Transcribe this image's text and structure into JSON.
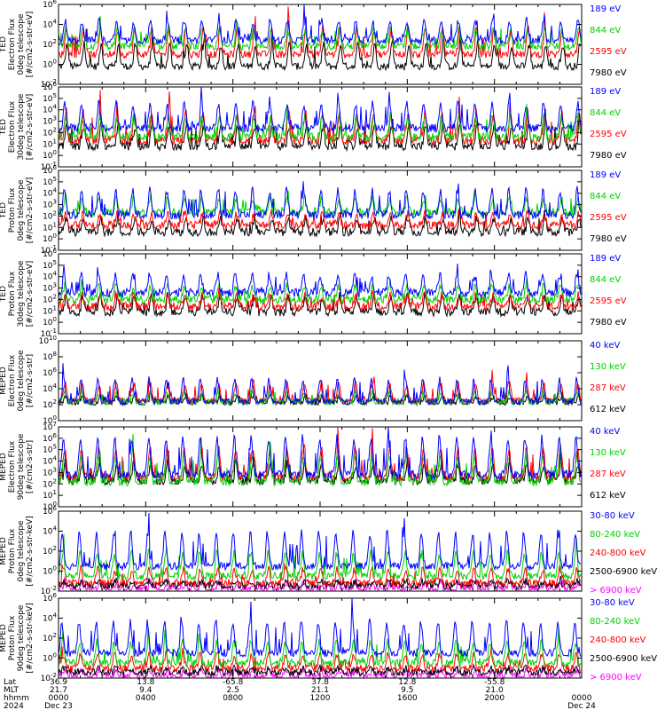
{
  "colors": {
    "black": "#000000",
    "red": "#ff0000",
    "green": "#00d000",
    "blue": "#0000ff",
    "magenta": "#ff00ff",
    "frame": "#000000"
  },
  "chart_data": [
    {
      "type": "line",
      "ylabel": [
        "TED",
        "Electron Flux",
        "0deg telescope",
        "[#/cm2-s-str-eV]"
      ],
      "log": true,
      "ytick_exps": [
        -2,
        0,
        2,
        4,
        6
      ],
      "series": [
        {
          "name": "7980 eV",
          "color": "black",
          "level": -0.2,
          "amp": 2.2
        },
        {
          "name": "2595 eV",
          "color": "red",
          "level": 1.0,
          "amp": 2.6
        },
        {
          "name": "844 eV",
          "color": "green",
          "level": 1.8,
          "amp": 1.8
        },
        {
          "name": "189 eV",
          "color": "blue",
          "level": 2.4,
          "amp": 2.0
        }
      ]
    },
    {
      "type": "line",
      "ylabel": [
        "TED",
        "Electron Flux",
        "30deg telescope",
        "[#/cm2-s-str-eV]"
      ],
      "log": true,
      "ytick_exps": [
        -1,
        0,
        1,
        2,
        3,
        4,
        5,
        6
      ],
      "series": [
        {
          "name": "7980 eV",
          "color": "black",
          "level": 0.8,
          "amp": 1.8
        },
        {
          "name": "2595 eV",
          "color": "red",
          "level": 1.3,
          "amp": 2.5
        },
        {
          "name": "844 eV",
          "color": "green",
          "level": 1.6,
          "amp": 1.8
        },
        {
          "name": "189 eV",
          "color": "blue",
          "level": 2.4,
          "amp": 2.2
        }
      ]
    },
    {
      "type": "line",
      "ylabel": [
        "TED",
        "Proton Flux",
        "0deg telescope",
        "[#/cm2-s-str-eV]"
      ],
      "log": true,
      "ytick_exps": [
        -1,
        0,
        1,
        2,
        3,
        4,
        5,
        6
      ],
      "series": [
        {
          "name": "7980 eV",
          "color": "black",
          "level": 0.6,
          "amp": 1.2
        },
        {
          "name": "2595 eV",
          "color": "red",
          "level": 1.2,
          "amp": 1.0
        },
        {
          "name": "844 eV",
          "color": "green",
          "level": 2.3,
          "amp": 1.3
        },
        {
          "name": "189 eV",
          "color": "blue",
          "level": 2.1,
          "amp": 2.2
        }
      ]
    },
    {
      "type": "line",
      "ylabel": [
        "TED",
        "Proton Flux",
        "30deg telescope",
        "[#/cm2-s-str-eV]"
      ],
      "log": true,
      "ytick_exps": [
        -1,
        0,
        1,
        2,
        3,
        4,
        5,
        6
      ],
      "series": [
        {
          "name": "7980 eV",
          "color": "black",
          "level": 0.9,
          "amp": 1.4
        },
        {
          "name": "2595 eV",
          "color": "red",
          "level": 1.4,
          "amp": 1.0
        },
        {
          "name": "844 eV",
          "color": "green",
          "level": 2.0,
          "amp": 1.2
        },
        {
          "name": "189 eV",
          "color": "blue",
          "level": 2.6,
          "amp": 1.6
        }
      ]
    },
    {
      "type": "line",
      "ylabel": [
        "MEPED",
        "Electron Flux",
        "0deg telescope",
        "[#/cm2-s-str]"
      ],
      "log": true,
      "ytick_exps": [
        0,
        2,
        4,
        6,
        8,
        10
      ],
      "series": [
        {
          "name": "612 keV",
          "color": "black",
          "level": 2.3,
          "amp": 0.8
        },
        {
          "name": "287 keV",
          "color": "red",
          "level": 2.5,
          "amp": 2.2
        },
        {
          "name": "130 keV",
          "color": "green",
          "level": 2.3,
          "amp": 1.2
        },
        {
          "name": "40 keV",
          "color": "blue",
          "level": 2.4,
          "amp": 2.8
        }
      ]
    },
    {
      "type": "line",
      "ylabel": [
        "MEPED",
        "Electron Flux",
        "90deg telescope",
        "[#/cm2-s-str]"
      ],
      "log": true,
      "ytick_exps": [
        0,
        1,
        2,
        3,
        4,
        5,
        6,
        7
      ],
      "series": [
        {
          "name": "612 keV",
          "color": "black",
          "level": 2.3,
          "amp": 1.5
        },
        {
          "name": "287 keV",
          "color": "red",
          "level": 2.6,
          "amp": 2.6
        },
        {
          "name": "130 keV",
          "color": "green",
          "level": 2.2,
          "amp": 2.3
        },
        {
          "name": "40 keV",
          "color": "blue",
          "level": 2.8,
          "amp": 3.3
        }
      ]
    },
    {
      "type": "line",
      "ylabel": [
        "MEPED",
        "Proton Flux",
        "0deg telescope",
        "[#/cm2-s-str-keV]"
      ],
      "log": true,
      "ytick_exps": [
        -2,
        0,
        2,
        4,
        6
      ],
      "series": [
        {
          "name": "> 6900 keV",
          "color": "magenta",
          "level": -1.8,
          "amp": 0.6
        },
        {
          "name": "2500-6900 keV",
          "color": "black",
          "level": -1.4,
          "amp": 0.4
        },
        {
          "name": "240-800 keV",
          "color": "red",
          "level": -1.2,
          "amp": 1.4
        },
        {
          "name": "80-240 keV",
          "color": "green",
          "level": -0.5,
          "amp": 2.4
        },
        {
          "name": "30-80 keV",
          "color": "blue",
          "level": 0.5,
          "amp": 3.4
        }
      ]
    },
    {
      "type": "line",
      "ylabel": [
        "MEPED",
        "Proton Flux",
        "90deg telescope",
        "[#/cm2-s-str-keV]"
      ],
      "log": true,
      "ytick_exps": [
        -2,
        0,
        2,
        4,
        6
      ],
      "series": [
        {
          "name": "> 6900 keV",
          "color": "magenta",
          "level": -1.8,
          "amp": 0.6
        },
        {
          "name": "2500-6900 keV",
          "color": "black",
          "level": -1.4,
          "amp": 0.4
        },
        {
          "name": "240-800 keV",
          "color": "red",
          "level": -1.0,
          "amp": 1.4
        },
        {
          "name": "80-240 keV",
          "color": "green",
          "level": -0.5,
          "amp": 2.2
        },
        {
          "name": "30-80 keV",
          "color": "blue",
          "level": 0.5,
          "amp": 3.2
        }
      ]
    }
  ],
  "footer": {
    "row_labels": [
      "Lat",
      "MLT",
      "hhmm",
      "2024"
    ],
    "columns": [
      {
        "lat": "36.9",
        "mlt": "21.7",
        "hhmm": "0000",
        "date": "Dec 23"
      },
      {
        "lat": "13.8",
        "mlt": "9.4",
        "hhmm": "0400",
        "date": ""
      },
      {
        "lat": "-65.8",
        "mlt": "2.5",
        "hhmm": "0800",
        "date": ""
      },
      {
        "lat": "37.8",
        "mlt": "21.1",
        "hhmm": "1200",
        "date": ""
      },
      {
        "lat": "12.8",
        "mlt": "9.5",
        "hhmm": "1600",
        "date": ""
      },
      {
        "lat": "-55.8",
        "mlt": "21.0",
        "hhmm": "2000",
        "date": ""
      },
      {
        "lat": "",
        "mlt": "",
        "hhmm": "0000",
        "date": "Dec 24"
      }
    ]
  }
}
